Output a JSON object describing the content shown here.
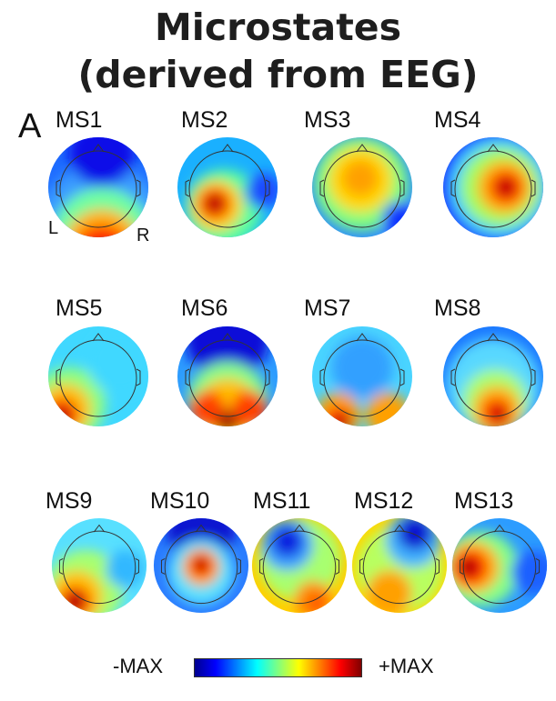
{
  "title": {
    "line1": "Microstates",
    "line2": "(derived from EEG)"
  },
  "panel_label": "A",
  "side_labels": {
    "left": "L",
    "right": "R"
  },
  "colorbar": {
    "min_label": "-MAX",
    "max_label": "+MAX",
    "colors": [
      "#00008f",
      "#0000ff",
      "#0080ff",
      "#00ffff",
      "#80ff80",
      "#ffff00",
      "#ff8000",
      "#ff0000",
      "#800000"
    ]
  },
  "maps": [
    {
      "label": "MS1",
      "bg": "#1e6cff",
      "blobs": [
        {
          "c": "#3a9cff",
          "x": 60,
          "y": 100,
          "r": 70
        },
        {
          "c": "#70ffa0",
          "x": 60,
          "y": 112,
          "r": 55
        },
        {
          "c": "#ffb000",
          "x": 60,
          "y": 122,
          "r": 42
        },
        {
          "c": "#ff2a00",
          "x": 60,
          "y": 130,
          "r": 32
        },
        {
          "c": "#a00000",
          "x": 60,
          "y": 138,
          "r": 18
        },
        {
          "c": "#1010e8",
          "x": 60,
          "y": 18,
          "r": 36
        }
      ]
    },
    {
      "label": "MS2",
      "bg": "#1ab0ff",
      "blobs": [
        {
          "c": "#5cff9e",
          "x": 52,
          "y": 78,
          "r": 42
        },
        {
          "c": "#ffd000",
          "x": 44,
          "y": 76,
          "r": 28
        },
        {
          "c": "#ff3a00",
          "x": 42,
          "y": 74,
          "r": 18
        },
        {
          "c": "#9e0000",
          "x": 42,
          "y": 74,
          "r": 9
        },
        {
          "c": "#1a4cff",
          "x": 96,
          "y": 60,
          "r": 20
        }
      ]
    },
    {
      "label": "MS3",
      "bg": "#2c8cff",
      "blobs": [
        {
          "c": "#80ff80",
          "x": 55,
          "y": 52,
          "r": 52
        },
        {
          "c": "#ffd800",
          "x": 54,
          "y": 48,
          "r": 36
        },
        {
          "c": "#ffa000",
          "x": 54,
          "y": 46,
          "r": 20
        },
        {
          "c": "#1030ff",
          "x": 98,
          "y": 92,
          "r": 20
        }
      ]
    },
    {
      "label": "MS4",
      "bg": "#1c2cff",
      "blobs": [
        {
          "c": "#38c8ff",
          "x": 62,
          "y": 56,
          "r": 58
        },
        {
          "c": "#a0ff60",
          "x": 64,
          "y": 56,
          "r": 44
        },
        {
          "c": "#ffb000",
          "x": 68,
          "y": 56,
          "r": 30
        },
        {
          "c": "#ff2000",
          "x": 70,
          "y": 56,
          "r": 18
        },
        {
          "c": "#a80000",
          "x": 70,
          "y": 56,
          "r": 9
        }
      ]
    },
    {
      "label": "MS5",
      "bg": "#40d8ff",
      "blobs": [
        {
          "c": "#90ff80",
          "x": 24,
          "y": 86,
          "r": 40
        },
        {
          "c": "#ffc000",
          "x": 20,
          "y": 92,
          "r": 28
        },
        {
          "c": "#ff3000",
          "x": 16,
          "y": 98,
          "r": 18
        },
        {
          "c": "#9e0000",
          "x": 16,
          "y": 100,
          "r": 9
        },
        {
          "c": "#40d8ff",
          "x": 80,
          "y": 40,
          "r": 36
        }
      ]
    },
    {
      "label": "MS6",
      "bg": "#2d9cff",
      "blobs": [
        {
          "c": "#0a10d8",
          "x": 56,
          "y": 14,
          "r": 46
        },
        {
          "c": "#88ff88",
          "x": 56,
          "y": 84,
          "r": 44
        },
        {
          "c": "#ffc000",
          "x": 56,
          "y": 92,
          "r": 34
        },
        {
          "c": "#ff4000",
          "x": 34,
          "y": 92,
          "r": 20
        },
        {
          "c": "#ff4000",
          "x": 80,
          "y": 92,
          "r": 20
        },
        {
          "c": "#9e0000",
          "x": 56,
          "y": 106,
          "r": 12
        }
      ]
    },
    {
      "label": "MS7",
      "bg": "#4ad4ff",
      "blobs": [
        {
          "c": "#30a0ff",
          "x": 56,
          "y": 46,
          "r": 34
        },
        {
          "c": "#ffa000",
          "x": 30,
          "y": 98,
          "r": 24
        },
        {
          "c": "#ffa000",
          "x": 84,
          "y": 98,
          "r": 24
        },
        {
          "c": "#ff2000",
          "x": 30,
          "y": 104,
          "r": 14
        },
        {
          "c": "#a80000",
          "x": 34,
          "y": 106,
          "r": 8
        }
      ]
    },
    {
      "label": "MS8",
      "bg": "#1a78ff",
      "blobs": [
        {
          "c": "#58d8ff",
          "x": 56,
          "y": 66,
          "r": 52
        },
        {
          "c": "#a8ff70",
          "x": 58,
          "y": 84,
          "r": 36
        },
        {
          "c": "#ffb000",
          "x": 60,
          "y": 92,
          "r": 26
        },
        {
          "c": "#ff2a00",
          "x": 60,
          "y": 96,
          "r": 16
        },
        {
          "c": "#b00000",
          "x": 62,
          "y": 98,
          "r": 8
        }
      ]
    },
    {
      "label": "MS9",
      "bg": "#58e0ff",
      "blobs": [
        {
          "c": "#a8ff70",
          "x": 40,
          "y": 82,
          "r": 44
        },
        {
          "c": "#ffc000",
          "x": 30,
          "y": 92,
          "r": 30
        },
        {
          "c": "#ff3000",
          "x": 28,
          "y": 98,
          "r": 18
        },
        {
          "c": "#a00000",
          "x": 28,
          "y": 98,
          "r": 10
        },
        {
          "c": "#30b8ff",
          "x": 86,
          "y": 60,
          "r": 22
        }
      ]
    },
    {
      "label": "MS10",
      "bg": "#2a7cff",
      "blobs": [
        {
          "c": "#0a14d0",
          "x": 56,
          "y": 14,
          "r": 40
        },
        {
          "c": "#58e0ff",
          "x": 56,
          "y": 64,
          "r": 38
        },
        {
          "c": "#ffb000",
          "x": 56,
          "y": 58,
          "r": 22
        },
        {
          "c": "#ff2000",
          "x": 56,
          "y": 56,
          "r": 14
        },
        {
          "c": "#a00000",
          "x": 56,
          "y": 54,
          "r": 7
        }
      ]
    },
    {
      "label": "MS11",
      "bg": "#ffd000",
      "blobs": [
        {
          "c": "#a8ff70",
          "x": 56,
          "y": 48,
          "r": 48
        },
        {
          "c": "#3aa0ff",
          "x": 42,
          "y": 32,
          "r": 30
        },
        {
          "c": "#0a20e0",
          "x": 42,
          "y": 28,
          "r": 18
        },
        {
          "c": "#ff9000",
          "x": 72,
          "y": 96,
          "r": 22
        },
        {
          "c": "#ff5a00",
          "x": 76,
          "y": 100,
          "r": 12
        }
      ]
    },
    {
      "label": "MS12",
      "bg": "#ffd800",
      "blobs": [
        {
          "c": "#b8ff60",
          "x": 56,
          "y": 60,
          "r": 50
        },
        {
          "c": "#40b0ff",
          "x": 72,
          "y": 26,
          "r": 32
        },
        {
          "c": "#0a18d0",
          "x": 74,
          "y": 18,
          "r": 20
        },
        {
          "c": "#ffa000",
          "x": 44,
          "y": 88,
          "r": 26
        }
      ]
    },
    {
      "label": "MS13",
      "bg": "#2c9cff",
      "blobs": [
        {
          "c": "#88ff88",
          "x": 34,
          "y": 60,
          "r": 44
        },
        {
          "c": "#ffb000",
          "x": 26,
          "y": 58,
          "r": 30
        },
        {
          "c": "#ff2000",
          "x": 22,
          "y": 58,
          "r": 20
        },
        {
          "c": "#a00000",
          "x": 20,
          "y": 58,
          "r": 10
        },
        {
          "c": "#1e60ff",
          "x": 96,
          "y": 64,
          "r": 26
        }
      ]
    }
  ]
}
